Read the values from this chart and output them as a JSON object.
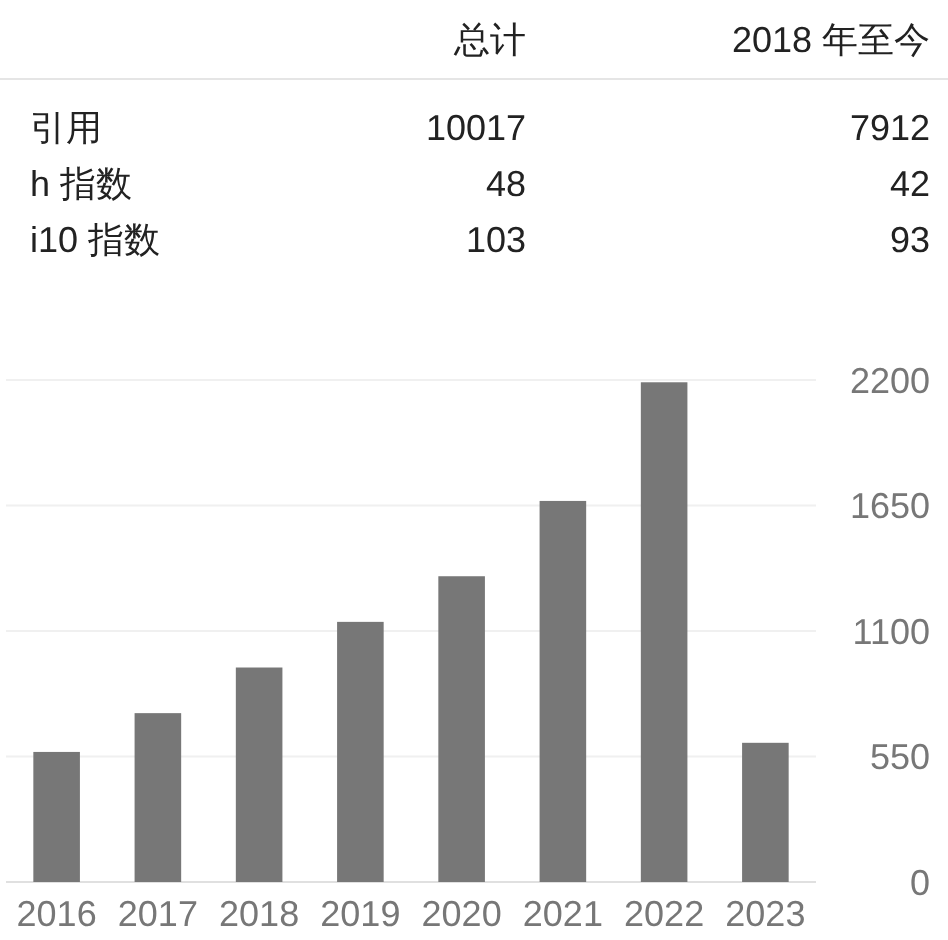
{
  "chart_data": [
    {
      "type": "other",
      "categories": [
        "引用",
        "h 指数",
        "i10 指数"
      ],
      "series": [
        {
          "name": "总计",
          "values": [
            10017,
            48,
            103
          ]
        },
        {
          "name": "2018 年至今",
          "values": [
            7912,
            42,
            93
          ]
        }
      ],
      "data_labels": true
    },
    {
      "type": "bar",
      "categories": [
        "2016",
        "2017",
        "2018",
        "2019",
        "2020",
        "2021",
        "2022",
        "2023"
      ],
      "values": [
        570,
        740,
        940,
        1140,
        1340,
        1670,
        2190,
        610
      ],
      "color": "#777777",
      "ylim": [
        0,
        2200
      ],
      "yticks": [
        0,
        550,
        1100,
        1650,
        2200
      ],
      "grid": "y"
    }
  ]
}
